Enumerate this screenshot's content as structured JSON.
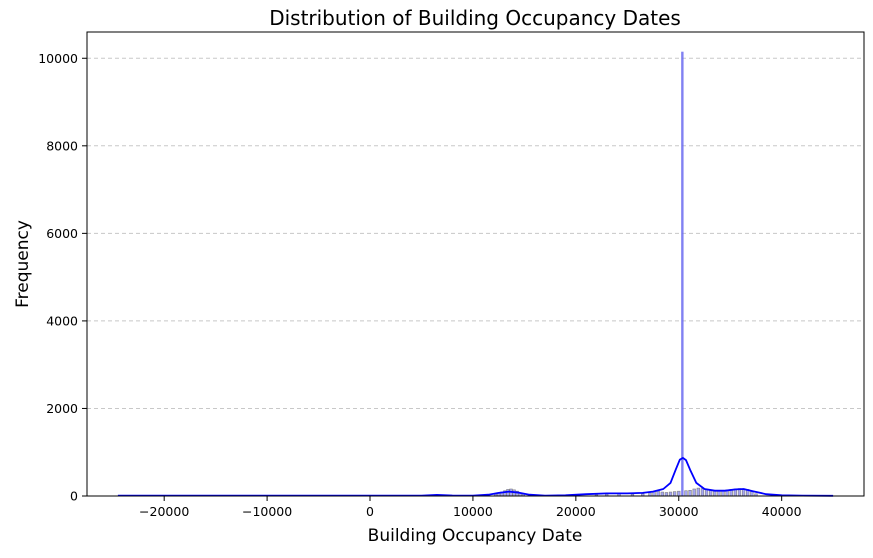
{
  "chart_data": {
    "type": "histogram",
    "title": "Distribution of Building Occupancy Dates",
    "xlabel": "Building Occupancy Date",
    "ylabel": "Frequency",
    "xlim": [
      -27500,
      48000
    ],
    "ylim": [
      0,
      10600
    ],
    "xticks": [
      -20000,
      -10000,
      0,
      10000,
      20000,
      30000,
      40000
    ],
    "yticks": [
      0,
      2000,
      4000,
      6000,
      8000,
      10000
    ],
    "grid": {
      "y": true,
      "x": false,
      "style": "dashed"
    },
    "legend": false,
    "colors": {
      "bars": "#8080f0",
      "bar_edge": "#808080",
      "kde": "#0000ff",
      "spike": "#6b6bf0",
      "grid": "#c8c8c8"
    },
    "histogram_bars": [
      {
        "x": 12200,
        "y": 40
      },
      {
        "x": 12500,
        "y": 70
      },
      {
        "x": 12800,
        "y": 90
      },
      {
        "x": 13100,
        "y": 120
      },
      {
        "x": 13400,
        "y": 150
      },
      {
        "x": 13700,
        "y": 160
      },
      {
        "x": 14000,
        "y": 140
      },
      {
        "x": 14300,
        "y": 110
      },
      {
        "x": 14600,
        "y": 70
      },
      {
        "x": 14900,
        "y": 40
      },
      {
        "x": 22000,
        "y": 25
      },
      {
        "x": 23000,
        "y": 40
      },
      {
        "x": 24200,
        "y": 60
      },
      {
        "x": 25500,
        "y": 40
      },
      {
        "x": 26500,
        "y": 50
      },
      {
        "x": 27200,
        "y": 70
      },
      {
        "x": 27600,
        "y": 100
      },
      {
        "x": 28000,
        "y": 110
      },
      {
        "x": 28400,
        "y": 90
      },
      {
        "x": 28800,
        "y": 80
      },
      {
        "x": 29200,
        "y": 90
      },
      {
        "x": 29600,
        "y": 100
      },
      {
        "x": 30000,
        "y": 110
      },
      {
        "x": 30700,
        "y": 120
      },
      {
        "x": 31100,
        "y": 130
      },
      {
        "x": 31500,
        "y": 160
      },
      {
        "x": 31900,
        "y": 180
      },
      {
        "x": 32300,
        "y": 170
      },
      {
        "x": 32700,
        "y": 150
      },
      {
        "x": 33100,
        "y": 140
      },
      {
        "x": 33500,
        "y": 130
      },
      {
        "x": 33900,
        "y": 120
      },
      {
        "x": 34300,
        "y": 130
      },
      {
        "x": 34700,
        "y": 140
      },
      {
        "x": 35100,
        "y": 150
      },
      {
        "x": 35500,
        "y": 160
      },
      {
        "x": 35900,
        "y": 170
      },
      {
        "x": 36300,
        "y": 160
      },
      {
        "x": 36700,
        "y": 150
      },
      {
        "x": 37100,
        "y": 100
      },
      {
        "x": 37500,
        "y": 50
      }
    ],
    "spike": {
      "x": 30350,
      "y": 10150
    },
    "kde": [
      [
        -24500,
        8
      ],
      [
        -20000,
        8
      ],
      [
        -10000,
        8
      ],
      [
        0,
        8
      ],
      [
        5000,
        10
      ],
      [
        6500,
        25
      ],
      [
        8000,
        12
      ],
      [
        10000,
        10
      ],
      [
        11500,
        30
      ],
      [
        12500,
        70
      ],
      [
        13500,
        100
      ],
      [
        14500,
        75
      ],
      [
        15500,
        30
      ],
      [
        17000,
        10
      ],
      [
        19000,
        15
      ],
      [
        21000,
        40
      ],
      [
        23000,
        60
      ],
      [
        25000,
        60
      ],
      [
        26500,
        70
      ],
      [
        27500,
        100
      ],
      [
        28500,
        160
      ],
      [
        29200,
        300
      ],
      [
        29700,
        600
      ],
      [
        30100,
        830
      ],
      [
        30400,
        870
      ],
      [
        30700,
        820
      ],
      [
        31100,
        600
      ],
      [
        31700,
        300
      ],
      [
        32500,
        160
      ],
      [
        33500,
        120
      ],
      [
        34500,
        120
      ],
      [
        35500,
        150
      ],
      [
        36300,
        160
      ],
      [
        37200,
        110
      ],
      [
        38500,
        40
      ],
      [
        40000,
        15
      ],
      [
        42000,
        8
      ],
      [
        45000,
        5
      ]
    ]
  }
}
